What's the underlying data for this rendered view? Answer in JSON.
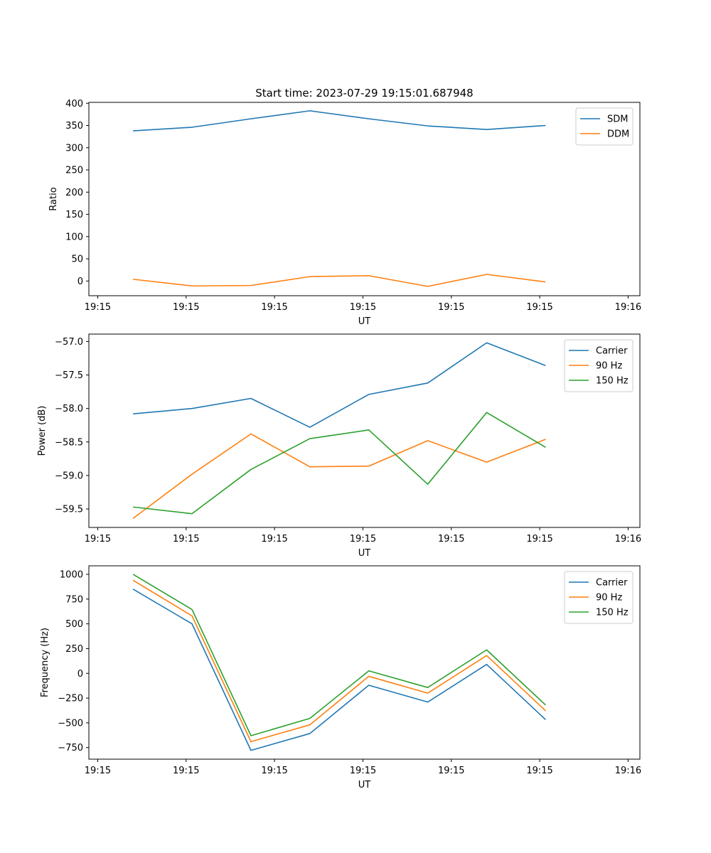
{
  "figure": {
    "title": "Start time: 2023-07-29 19:15:01.687948"
  },
  "chart_data": [
    {
      "type": "line",
      "title": "Start time: 2023-07-29 19:15:01.687948",
      "xlabel": "UT",
      "ylabel": "Ratio",
      "x": [
        0,
        1,
        2,
        3,
        4,
        5,
        6,
        7
      ],
      "xlim": [
        -0.75,
        8.6
      ],
      "x_ticks": [
        -0.6,
        0.9,
        2.4,
        3.9,
        5.4,
        6.9,
        8.4
      ],
      "x_tick_labels": [
        "19:15",
        "19:15",
        "19:15",
        "19:15",
        "19:15",
        "19:15",
        "19:16"
      ],
      "ylim": [
        -33,
        402
      ],
      "y_ticks": [
        0,
        50,
        100,
        150,
        200,
        250,
        300,
        350,
        400
      ],
      "y_tick_labels": [
        "0",
        "50",
        "100",
        "150",
        "200",
        "250",
        "300",
        "350",
        "400"
      ],
      "legend_position": "top-right",
      "series": [
        {
          "name": "SDM",
          "color": "#1f77b4",
          "values": [
            338,
            346,
            365,
            383,
            365,
            349,
            341,
            350
          ]
        },
        {
          "name": "DDM",
          "color": "#ff7f0e",
          "values": [
            4,
            -11,
            -10,
            10,
            12,
            -12,
            15,
            -2
          ]
        }
      ]
    },
    {
      "type": "line",
      "title": "",
      "xlabel": "UT",
      "ylabel": "Power (dB)",
      "x": [
        0,
        1,
        2,
        3,
        4,
        5,
        6,
        7
      ],
      "xlim": [
        -0.75,
        8.6
      ],
      "x_ticks": [
        -0.6,
        0.9,
        2.4,
        3.9,
        5.4,
        6.9,
        8.4
      ],
      "x_tick_labels": [
        "19:15",
        "19:15",
        "19:15",
        "19:15",
        "19:15",
        "19:15",
        "19:16"
      ],
      "ylim": [
        -59.775,
        -56.89
      ],
      "y_ticks": [
        -59.5,
        -59.0,
        -58.5,
        -58.0,
        -57.5,
        -57.0
      ],
      "y_tick_labels": [
        "−59.5",
        "−59.0",
        "−58.5",
        "−58.0",
        "−57.5",
        "−57.0"
      ],
      "legend_position": "top-right",
      "series": [
        {
          "name": "Carrier",
          "color": "#1f77b4",
          "values": [
            -58.08,
            -58.0,
            -57.85,
            -58.28,
            -57.79,
            -57.62,
            -57.02,
            -57.36
          ]
        },
        {
          "name": "90 Hz",
          "color": "#ff7f0e",
          "values": [
            -59.64,
            -58.98,
            -58.38,
            -58.87,
            -58.86,
            -58.48,
            -58.8,
            -58.46
          ]
        },
        {
          "name": "150 Hz",
          "color": "#2ca02c",
          "values": [
            -59.47,
            -59.57,
            -58.91,
            -58.45,
            -58.32,
            -59.13,
            -58.06,
            -58.58
          ]
        }
      ]
    },
    {
      "type": "line",
      "title": "",
      "xlabel": "UT",
      "ylabel": "Frequency (Hz)",
      "x": [
        0,
        1,
        2,
        3,
        4,
        5,
        6,
        7
      ],
      "xlim": [
        -0.75,
        8.6
      ],
      "x_ticks": [
        -0.6,
        0.9,
        2.4,
        3.9,
        5.4,
        6.9,
        8.4
      ],
      "x_tick_labels": [
        "19:15",
        "19:15",
        "19:15",
        "19:15",
        "19:15",
        "19:15",
        "19:16"
      ],
      "ylim": [
        -867,
        1086
      ],
      "y_ticks": [
        -750,
        -500,
        -250,
        0,
        250,
        500,
        750,
        1000
      ],
      "y_tick_labels": [
        "−750",
        "−500",
        "−250",
        "0",
        "250",
        "500",
        "750",
        "1000"
      ],
      "legend_position": "top-right",
      "series": [
        {
          "name": "Carrier",
          "color": "#1f77b4",
          "values": [
            850,
            500,
            -778,
            -608,
            -120,
            -290,
            90,
            -468
          ]
        },
        {
          "name": "90 Hz",
          "color": "#ff7f0e",
          "values": [
            940,
            580,
            -690,
            -520,
            -30,
            -200,
            180,
            -378
          ]
        },
        {
          "name": "150 Hz",
          "color": "#2ca02c",
          "values": [
            1000,
            645,
            -630,
            -455,
            25,
            -143,
            237,
            -320
          ]
        }
      ]
    }
  ]
}
